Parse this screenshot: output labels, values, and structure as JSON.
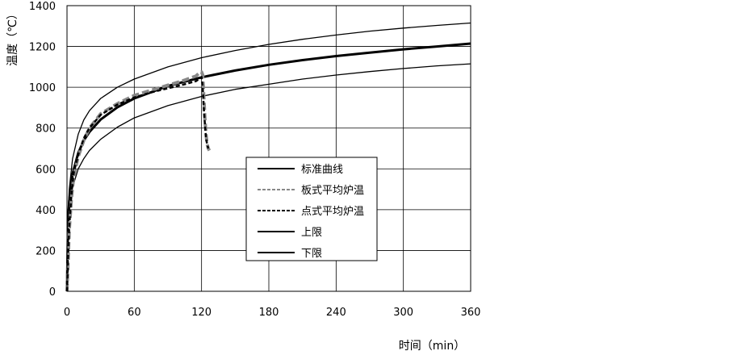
{
  "chart_data": {
    "type": "line",
    "title": "",
    "xlabel": "时间（min）",
    "ylabel": "温度（℃）",
    "xlim": [
      0,
      360
    ],
    "ylim": [
      0,
      1400
    ],
    "xticks": [
      "0",
      "60",
      "120",
      "180",
      "240",
      "300",
      "360"
    ],
    "yticks": [
      "0",
      "200",
      "400",
      "600",
      "800",
      "1000",
      "1200",
      "1400"
    ],
    "grid": true,
    "legend_position": "center-right",
    "series": [
      {
        "name": "标准曲线",
        "style": "solid-bold",
        "color": "#000000",
        "x": [
          0,
          1,
          2,
          5,
          10,
          15,
          20,
          30,
          45,
          60,
          90,
          120,
          150,
          180,
          210,
          240,
          270,
          300,
          330,
          360
        ],
        "y": [
          20,
          349,
          445,
          576,
          678,
          739,
          781,
          842,
          902,
          945,
          1006,
          1049,
          1082,
          1110,
          1133,
          1153,
          1170,
          1186,
          1200,
          1214
        ]
      },
      {
        "name": "板式平均炉温",
        "style": "dashed-gray",
        "color": "#888888",
        "x": [
          0,
          1,
          2,
          4,
          6,
          10,
          15,
          20,
          30,
          45,
          60,
          75,
          90,
          105,
          115,
          118,
          120,
          121,
          122,
          123,
          124,
          125,
          126,
          127
        ],
        "y": [
          0,
          150,
          300,
          460,
          560,
          660,
          740,
          800,
          870,
          920,
          960,
          985,
          1010,
          1035,
          1055,
          1070,
          1075,
          1060,
          960,
          850,
          770,
          720,
          700,
          690
        ]
      },
      {
        "name": "点式平均炉温",
        "style": "dashed-black",
        "color": "#000000",
        "x": [
          0,
          1,
          2,
          4,
          6,
          10,
          15,
          20,
          30,
          45,
          60,
          75,
          90,
          105,
          115,
          119,
          120,
          121,
          122,
          123,
          124,
          125,
          126
        ],
        "y": [
          0,
          180,
          320,
          480,
          580,
          670,
          750,
          800,
          865,
          915,
          950,
          975,
          995,
          1015,
          1030,
          1045,
          1050,
          1000,
          900,
          820,
          750,
          720,
          700
        ]
      },
      {
        "name": "上限",
        "style": "solid-thin",
        "color": "#000000",
        "x": [
          0,
          1,
          2,
          5,
          10,
          15,
          20,
          30,
          45,
          60,
          90,
          120,
          150,
          180,
          210,
          240,
          270,
          300,
          330,
          360
        ],
        "y": [
          20,
          390,
          500,
          650,
          770,
          840,
          885,
          945,
          1000,
          1040,
          1100,
          1145,
          1180,
          1210,
          1235,
          1256,
          1275,
          1290,
          1303,
          1315
        ]
      },
      {
        "name": "下限",
        "style": "solid-thin",
        "color": "#000000",
        "x": [
          0,
          1,
          2,
          5,
          10,
          15,
          20,
          30,
          45,
          60,
          90,
          120,
          150,
          180,
          210,
          240,
          270,
          300,
          330,
          360
        ],
        "y": [
          20,
          300,
          390,
          510,
          600,
          650,
          690,
          745,
          805,
          850,
          910,
          955,
          990,
          1015,
          1040,
          1060,
          1077,
          1092,
          1105,
          1115
        ]
      }
    ]
  }
}
